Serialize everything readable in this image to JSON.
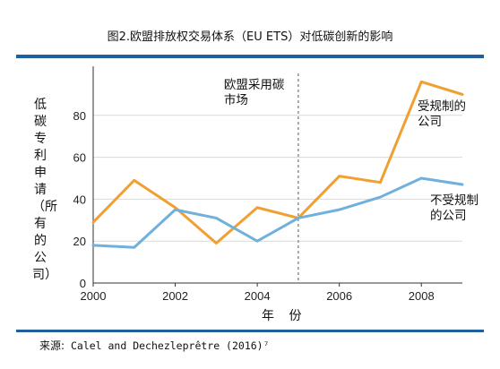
{
  "title": "图2.欧盟排放权交易体系（EU ETS）对低碳创新的影响",
  "source_label": "来源:",
  "source_text": " Calel and Dechezleprêtre (2016)⁷",
  "colors": {
    "rule": "#1f5f9e",
    "regulated": "#f0a030",
    "unregulated": "#6fb0dc",
    "grid": "#d9d9d9",
    "marker": "#888888"
  },
  "chart_data": {
    "type": "line",
    "x": [
      2000,
      2001,
      2002,
      2003,
      2004,
      2005,
      2006,
      2007,
      2008,
      2009
    ],
    "series": [
      {
        "name": "受规制的公司",
        "values": [
          29,
          49,
          36,
          19,
          36,
          31,
          51,
          48,
          96,
          90
        ]
      },
      {
        "name": "不受规制的公司",
        "values": [
          18,
          17,
          35,
          31,
          20,
          31,
          35,
          41,
          50,
          47
        ]
      }
    ],
    "xlabel": "年 份",
    "ylabel": "低碳专利申请（所有的公司）",
    "xlim": [
      2000,
      2009
    ],
    "ylim": [
      0,
      100
    ],
    "xticks": [
      2000,
      2002,
      2004,
      2006,
      2008
    ],
    "yticks": [
      0,
      20,
      40,
      60,
      80
    ],
    "grid": "horizontal",
    "annotation": {
      "x": 2005,
      "lines": [
        "欧盟采用碳",
        "市场"
      ]
    },
    "series_labels": [
      {
        "lines": [
          "受规制的",
          "公司"
        ]
      },
      {
        "lines": [
          "不受规制",
          "的公司"
        ]
      }
    ]
  }
}
